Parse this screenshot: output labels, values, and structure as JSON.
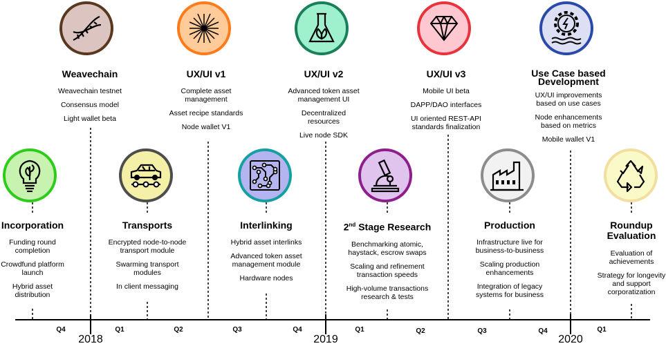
{
  "top_milestones": [
    {
      "title": "Weavechain",
      "items": [
        "Weavechain testnet",
        "Consensus model",
        "Light wallet beta"
      ]
    },
    {
      "title": "UX/UI v1",
      "items": [
        "Complete asset management",
        "Asset recipe standards",
        "Node wallet V1"
      ]
    },
    {
      "title": "UX/UI v2",
      "items": [
        "Advanced token asset management UI",
        "Decentralized resources",
        "Live node SDK"
      ]
    },
    {
      "title": "UX/UI v3",
      "items": [
        "Mobile UI beta",
        "DAPP/DAO interfaces",
        "UI oriented REST-API standards finalization"
      ]
    },
    {
      "title": "Use Case based Development",
      "items": [
        "UX/UI improvements based on use cases",
        "Node enhancements based on metrics",
        "Mobile wallet V1"
      ]
    }
  ],
  "bottom_milestones": [
    {
      "title": "Incorporation",
      "items": [
        "Funding round completion",
        "Crowdfund platform launch",
        "Hybrid asset distribution"
      ]
    },
    {
      "title": "Transports",
      "items": [
        "Encrypted node-to-node transport module",
        "Swarming transport modules",
        "In client messaging"
      ]
    },
    {
      "title": "Interlinking",
      "items": [
        "Hybrid asset interlinks",
        "Advanced token asset management module",
        "Hardware nodes"
      ]
    },
    {
      "title_main": "2",
      "title_sup": "nd",
      "title_rest": " Stage Research",
      "items": [
        "Benchmarking atomic, haystack, escrow swaps",
        "Scaling and refinement transaction speeds",
        "High-volume transactions research & tests"
      ]
    },
    {
      "title": "Production",
      "items": [
        "Infrastructure live for business-to-business",
        "Scaling production enhancements",
        "Integration of legacy systems for business"
      ]
    },
    {
      "title": "Roundup Evaluation",
      "items": [
        "Evaluation of achievements",
        "Strategy for longevity and support corporatization"
      ]
    }
  ],
  "quarters": [
    "Q4",
    "Q1",
    "Q2",
    "Q3",
    "Q4",
    "Q1",
    "Q2",
    "Q3",
    "Q4",
    "Q1"
  ],
  "years": [
    "2018",
    "2019",
    "2020"
  ],
  "icons": {
    "top": [
      "dna-icon",
      "laser-icon",
      "flask-leaf-icon",
      "diamond-icon",
      "gear-water-icon"
    ],
    "bottom": [
      "lightbulb-leaf-icon",
      "car-icon",
      "circuit-icon",
      "microscope-icon",
      "factory-icon",
      "recycle-icon"
    ]
  },
  "colors": {
    "top": [
      {
        "fill": "#dcc4c0",
        "stroke": "#5a3820"
      },
      {
        "fill": "#ffcc99",
        "stroke": "#ff7a1a"
      },
      {
        "fill": "#9ff0cc",
        "stroke": "#1a7f5a"
      },
      {
        "fill": "#ffc8d0",
        "stroke": "#e8323c"
      },
      {
        "fill": "#dde0f4",
        "stroke": "#2b4aa8"
      }
    ],
    "bottom": [
      {
        "fill": "#c8f2b0",
        "stroke": "#2ecc1a"
      },
      {
        "fill": "#f5f0a8",
        "stroke": "#4d4d4d"
      },
      {
        "fill": "#b4b4f0",
        "stroke": "#14a0a0"
      },
      {
        "fill": "#e0c4ee",
        "stroke": "#8c1f8c"
      },
      {
        "fill": "#f2f2f2",
        "stroke": "#8c8c8c"
      },
      {
        "fill": "#fafac8",
        "stroke": "#f2dfa0"
      }
    ]
  }
}
